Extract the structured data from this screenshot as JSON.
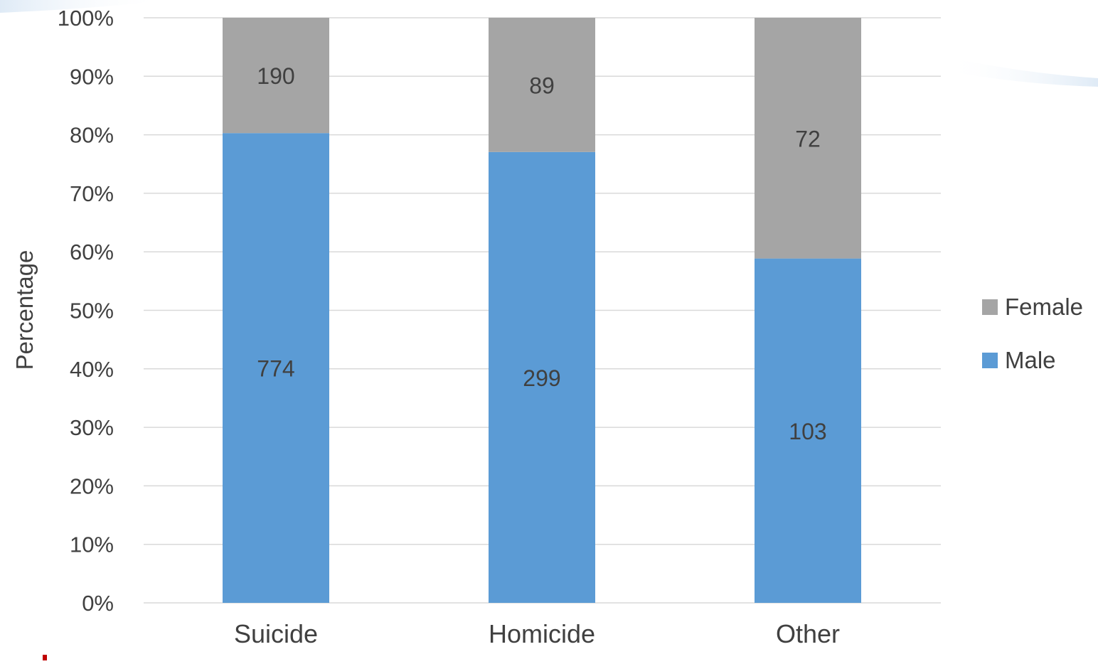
{
  "chart_data": {
    "type": "bar",
    "stacked": true,
    "normalized": "percent",
    "categories": [
      "Suicide",
      "Homicide",
      "Other"
    ],
    "series": [
      {
        "name": "Male",
        "values": [
          774,
          299,
          103
        ],
        "color": "#5b9bd5"
      },
      {
        "name": "Female",
        "values": [
          190,
          89,
          72
        ],
        "color": "#a5a5a5"
      }
    ],
    "ylabel": "Percentage",
    "xlabel": "",
    "title": "",
    "ylim": [
      0,
      100
    ],
    "y_ticks": [
      "0%",
      "10%",
      "20%",
      "30%",
      "40%",
      "50%",
      "60%",
      "70%",
      "80%",
      "90%",
      "100%"
    ],
    "grid": true,
    "legend_position": "right",
    "legend_order": [
      "Female",
      "Male"
    ]
  }
}
